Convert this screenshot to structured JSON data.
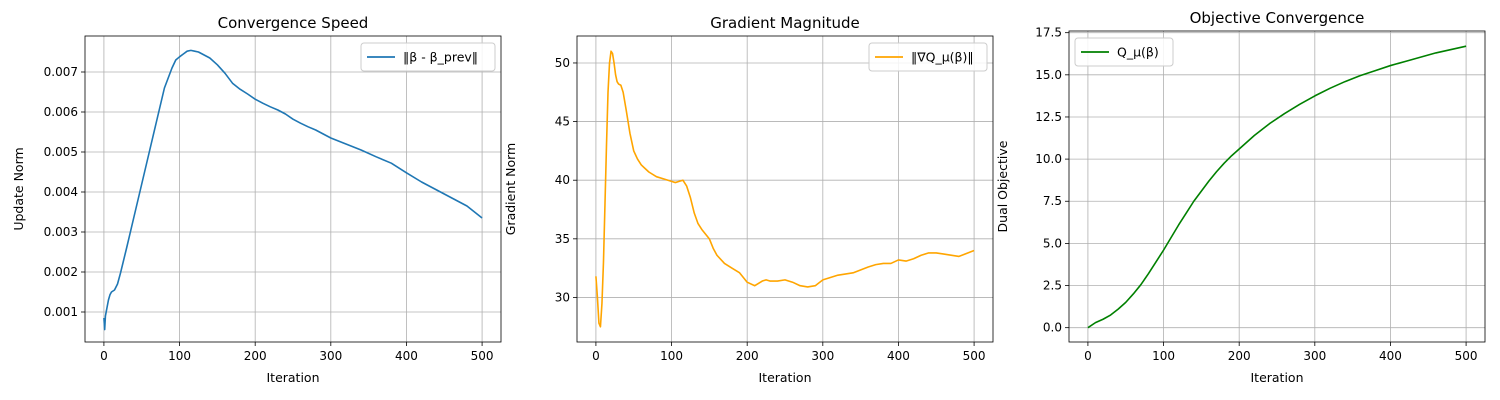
{
  "chart_data": [
    {
      "type": "line",
      "title": "Convergence Speed",
      "xlabel": "Iteration",
      "ylabel": "Update Norm",
      "xlim": [
        -25,
        525
      ],
      "ylim": [
        0.00025,
        0.0079
      ],
      "xticks": [
        0,
        100,
        200,
        300,
        400,
        500
      ],
      "xtick_labels": [
        "0",
        "100",
        "200",
        "300",
        "400",
        "500"
      ],
      "yticks": [
        0.001,
        0.002,
        0.003,
        0.004,
        0.005,
        0.006,
        0.007
      ],
      "ytick_labels": [
        "0.001",
        "0.002",
        "0.003",
        "0.004",
        "0.005",
        "0.006",
        "0.007"
      ],
      "grid": true,
      "legend_position": "top-right",
      "series": [
        {
          "name": "‖β - β_prev‖",
          "color": "#1f77b4",
          "x": [
            0,
            1,
            2,
            4,
            6,
            8,
            10,
            14,
            18,
            22,
            30,
            40,
            50,
            60,
            70,
            80,
            90,
            95,
            100,
            105,
            110,
            115,
            120,
            125,
            130,
            140,
            150,
            160,
            170,
            180,
            190,
            200,
            210,
            220,
            230,
            240,
            250,
            260,
            270,
            280,
            290,
            300,
            320,
            340,
            360,
            380,
            400,
            420,
            440,
            460,
            480,
            500
          ],
          "y": [
            0.00085,
            0.00056,
            0.0009,
            0.0011,
            0.0013,
            0.00143,
            0.0015,
            0.00155,
            0.0017,
            0.00198,
            0.0026,
            0.0034,
            0.0042,
            0.005,
            0.0058,
            0.0066,
            0.0071,
            0.0073,
            0.00738,
            0.00745,
            0.00752,
            0.00754,
            0.00752,
            0.0075,
            0.00745,
            0.00735,
            0.00718,
            0.00697,
            0.00672,
            0.00657,
            0.00645,
            0.00632,
            0.00622,
            0.00613,
            0.00605,
            0.00595,
            0.00582,
            0.00572,
            0.00563,
            0.00555,
            0.00545,
            0.00535,
            0.0052,
            0.00505,
            0.00488,
            0.00472,
            0.00448,
            0.00425,
            0.00405,
            0.00385,
            0.00365,
            0.00335
          ]
        }
      ]
    },
    {
      "type": "line",
      "title": "Gradient Magnitude",
      "xlabel": "Iteration",
      "ylabel": "Gradient Norm",
      "xlim": [
        -25,
        525
      ],
      "ylim": [
        26.2,
        52.3
      ],
      "xticks": [
        0,
        100,
        200,
        300,
        400,
        500
      ],
      "xtick_labels": [
        "0",
        "100",
        "200",
        "300",
        "400",
        "500"
      ],
      "yticks": [
        30,
        35,
        40,
        45,
        50
      ],
      "ytick_labels": [
        "30",
        "35",
        "40",
        "45",
        "50"
      ],
      "grid": true,
      "legend_position": "top-right",
      "series": [
        {
          "name": "‖∇Q_μ(β)‖",
          "color": "#ffa500",
          "x": [
            0,
            2,
            4,
            6,
            8,
            10,
            12,
            14,
            16,
            18,
            20,
            22,
            24,
            26,
            28,
            30,
            33,
            36,
            40,
            45,
            50,
            55,
            60,
            65,
            70,
            80,
            90,
            100,
            105,
            110,
            115,
            120,
            125,
            130,
            135,
            140,
            150,
            155,
            160,
            170,
            180,
            190,
            200,
            210,
            220,
            225,
            230,
            240,
            250,
            260,
            270,
            280,
            290,
            300,
            310,
            320,
            340,
            360,
            370,
            380,
            390,
            400,
            410,
            420,
            430,
            440,
            450,
            460,
            480,
            500
          ],
          "y": [
            31.8,
            30,
            27.8,
            27.5,
            29.5,
            33,
            38,
            43,
            47.5,
            50,
            51,
            50.8,
            50,
            49,
            48.4,
            48.2,
            48.1,
            47.5,
            46,
            44,
            42.5,
            41.8,
            41.3,
            41,
            40.7,
            40.3,
            40.1,
            39.9,
            39.8,
            39.9,
            40,
            39.5,
            38.5,
            37.2,
            36.3,
            35.8,
            35,
            34.2,
            33.6,
            32.9,
            32.5,
            32.1,
            31.3,
            31,
            31.4,
            31.5,
            31.4,
            31.4,
            31.5,
            31.3,
            31,
            30.9,
            31,
            31.5,
            31.7,
            31.9,
            32.1,
            32.6,
            32.8,
            32.9,
            32.9,
            33.2,
            33.1,
            33.3,
            33.6,
            33.8,
            33.8,
            33.7,
            33.5,
            34
          ]
        }
      ]
    },
    {
      "type": "line",
      "title": "Objective Convergence",
      "xlabel": "Iteration",
      "ylabel": "Dual Objective",
      "xlim": [
        -25,
        525
      ],
      "ylim": [
        -0.85,
        17.6
      ],
      "xticks": [
        0,
        100,
        200,
        300,
        400,
        500
      ],
      "xtick_labels": [
        "0",
        "100",
        "200",
        "300",
        "400",
        "500"
      ],
      "yticks": [
        0,
        2.5,
        5,
        7.5,
        10,
        12.5,
        15,
        17.5
      ],
      "ytick_labels": [
        "0.0",
        "2.5",
        "5.0",
        "7.5",
        "10.0",
        "12.5",
        "15.0",
        "17.5"
      ],
      "grid": true,
      "legend_position": "top-left",
      "series": [
        {
          "name": "Q_μ(β)",
          "color": "#008000",
          "x": [
            0,
            10,
            20,
            30,
            40,
            50,
            60,
            70,
            80,
            90,
            100,
            110,
            120,
            130,
            140,
            150,
            160,
            170,
            180,
            190,
            200,
            220,
            240,
            260,
            280,
            300,
            320,
            340,
            360,
            380,
            400,
            420,
            440,
            460,
            480,
            500
          ],
          "y": [
            0,
            0.3,
            0.5,
            0.75,
            1.1,
            1.5,
            2,
            2.55,
            3.2,
            3.9,
            4.6,
            5.35,
            6.1,
            6.8,
            7.5,
            8.1,
            8.7,
            9.25,
            9.75,
            10.2,
            10.6,
            11.4,
            12.1,
            12.7,
            13.25,
            13.75,
            14.2,
            14.6,
            14.95,
            15.25,
            15.55,
            15.8,
            16.05,
            16.3,
            16.5,
            16.7
          ]
        }
      ]
    }
  ]
}
